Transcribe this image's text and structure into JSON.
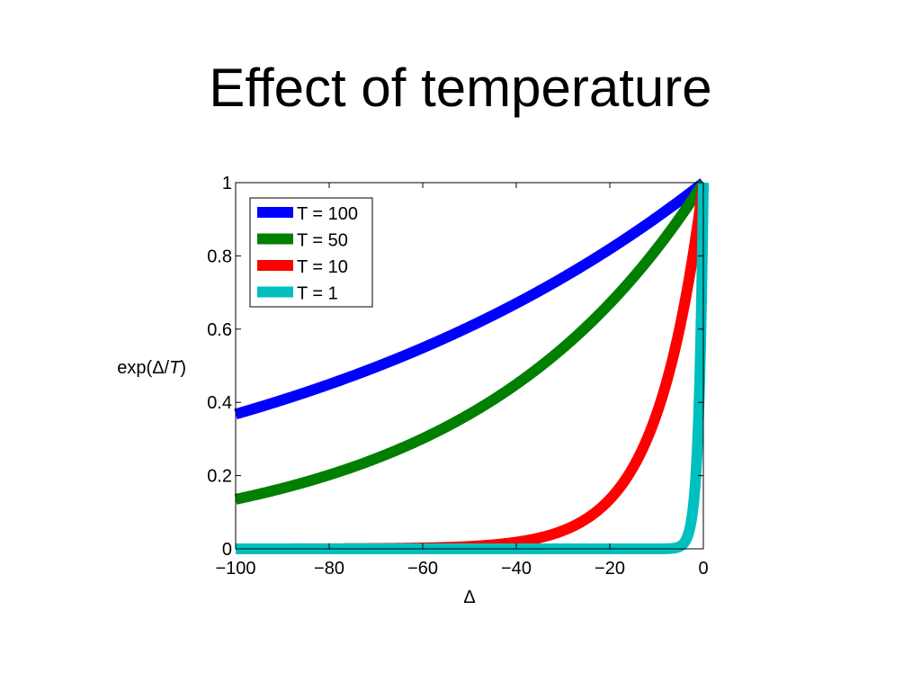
{
  "slide": {
    "title": "Effect of temperature"
  },
  "chart_data": {
    "type": "line",
    "formula": "exp(Δ/T)",
    "xlabel": "Δ",
    "ylabel": {
      "prefix": "exp(",
      "delta": "Δ",
      "slash": "/",
      "var": "T",
      "suffix": ")"
    },
    "xlim": [
      -100,
      0
    ],
    "ylim": [
      0,
      1
    ],
    "xticks": [
      -100,
      -80,
      -60,
      -40,
      -20,
      0
    ],
    "xtick_labels": [
      "−100",
      "−80",
      "−60",
      "−40",
      "−20",
      "0"
    ],
    "yticks": [
      0,
      0.2,
      0.4,
      0.6,
      0.8,
      1
    ],
    "ytick_labels": [
      "0",
      "0.2",
      "0.4",
      "0.6",
      "0.8",
      "1"
    ],
    "grid": false,
    "legend_position": "top-left",
    "x": [
      -100,
      -90,
      -80,
      -70,
      -60,
      -50,
      -40,
      -30,
      -20,
      -10,
      -5,
      -2,
      -1,
      0
    ],
    "series": [
      {
        "name": "T = 100",
        "T": 100,
        "color": "#0000ff",
        "values": [
          0.368,
          0.407,
          0.449,
          0.497,
          0.549,
          0.607,
          0.67,
          0.741,
          0.819,
          0.905,
          0.951,
          0.98,
          0.99,
          1.0
        ]
      },
      {
        "name": "T = 50",
        "T": 50,
        "color": "#007f00",
        "values": [
          0.135,
          0.165,
          0.202,
          0.247,
          0.301,
          0.368,
          0.449,
          0.549,
          0.67,
          0.819,
          0.905,
          0.961,
          0.98,
          1.0
        ]
      },
      {
        "name": "T = 10",
        "T": 10,
        "color": "#ff0000",
        "values": [
          0.0,
          0.0,
          0.0,
          0.001,
          0.002,
          0.007,
          0.018,
          0.05,
          0.135,
          0.368,
          0.607,
          0.819,
          0.905,
          1.0
        ]
      },
      {
        "name": "T = 1",
        "T": 1,
        "color": "#00bfbf",
        "values": [
          0.0,
          0.0,
          0.0,
          0.0,
          0.0,
          0.0,
          0.0,
          0.0,
          0.0,
          0.0,
          0.007,
          0.135,
          0.368,
          1.0
        ]
      }
    ]
  }
}
